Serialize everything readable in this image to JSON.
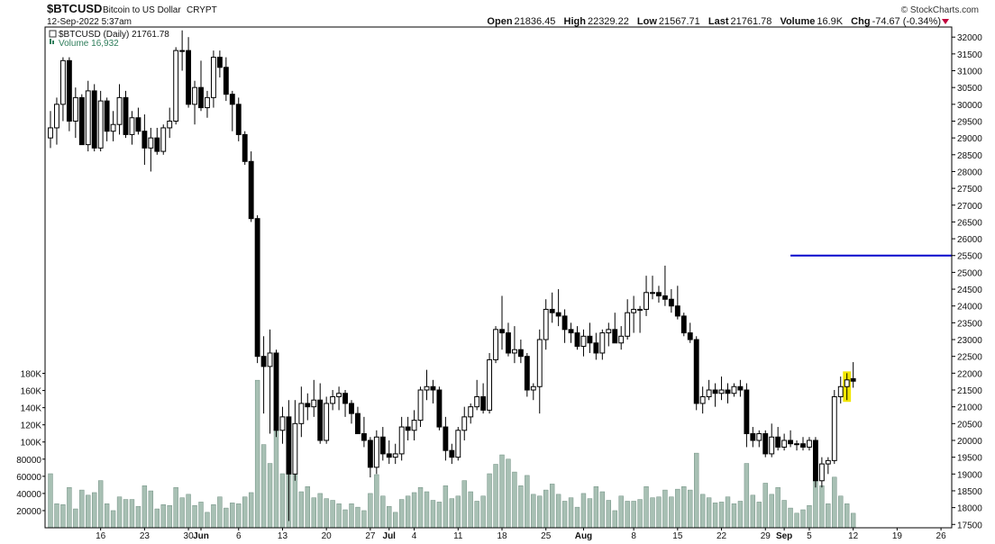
{
  "header": {
    "symbol": "$BTCUSD",
    "description": "Bitcoin to US Dollar",
    "exchange": "CRYPT",
    "datetime": "12-Sep-2022 5:37am",
    "credit": "© StockCharts.com",
    "stats": {
      "open_label": "Open",
      "open": "21836.45",
      "high_label": "High",
      "high": "22329.22",
      "low_label": "Low",
      "low": "21567.71",
      "last_label": "Last",
      "last": "21761.78",
      "volume_label": "Volume",
      "volume": "16.9K",
      "chg_label": "Chg",
      "chg": "-74.67 (-0.34%)"
    }
  },
  "legend": {
    "price": "$BTCUSD (Daily) 21761.78",
    "volume": "Volume 16,932"
  },
  "colors": {
    "up_fill": "#ffffff",
    "down_fill": "#000000",
    "volume_bar": "#a8c0b4",
    "volume_edge": "#6f8f80",
    "level_line": "#0000cc",
    "highlight": "#f2e600",
    "volume_legend": "#2e7d5b",
    "chg_arrow": "#c0003c"
  },
  "chart_data": {
    "type": "candlestick",
    "title": "$BTCUSD (Daily) 21761.78",
    "ylim": [
      17400,
      32300
    ],
    "y_ticks": [
      17500,
      18000,
      18500,
      19000,
      19500,
      20000,
      20500,
      21000,
      21500,
      22000,
      22500,
      23000,
      23500,
      24000,
      24500,
      25000,
      25500,
      26000,
      26500,
      27000,
      27500,
      28000,
      28500,
      29000,
      29500,
      30000,
      30500,
      31000,
      31500,
      32000
    ],
    "volume_ticks": [
      {
        "value": 20000,
        "label": "20000"
      },
      {
        "value": 40000,
        "label": "40000"
      },
      {
        "value": 60000,
        "label": "60000"
      },
      {
        "value": 80000,
        "label": "80000"
      },
      {
        "value": 100000,
        "label": "100K"
      },
      {
        "value": 120000,
        "label": "120K"
      },
      {
        "value": 140000,
        "label": "140K"
      },
      {
        "value": 160000,
        "label": "160K"
      },
      {
        "value": 180000,
        "label": "180K"
      }
    ],
    "volume_ylim": [
      0,
      190000
    ],
    "x_labels": [
      "16",
      "23",
      "30",
      "Jun",
      "6",
      "13",
      "20",
      "27",
      "Jul",
      "4",
      "11",
      "18",
      "25",
      "Aug",
      "8",
      "15",
      "22",
      "29",
      "Sep",
      "5",
      "12",
      "19",
      "26"
    ],
    "x_label_index": [
      8,
      15,
      22,
      24,
      30,
      37,
      44,
      51,
      54,
      58,
      65,
      72,
      79,
      85,
      93,
      100,
      107,
      114,
      117,
      121,
      128,
      135,
      142
    ],
    "bold_labels": [
      "Jun",
      "Jul",
      "Aug",
      "Sep"
    ],
    "horizontal_line": {
      "value": 25500,
      "start_index": 118
    },
    "highlight_index": 127,
    "candles": [
      {
        "o": 29000,
        "h": 29800,
        "l": 28700,
        "c": 29300,
        "v": 63000
      },
      {
        "o": 29300,
        "h": 30200,
        "l": 28800,
        "c": 30000,
        "v": 28000
      },
      {
        "o": 30000,
        "h": 31400,
        "l": 29500,
        "c": 31300,
        "v": 27000
      },
      {
        "o": 31300,
        "h": 31400,
        "l": 29200,
        "c": 29500,
        "v": 47000
      },
      {
        "o": 29500,
        "h": 30500,
        "l": 29000,
        "c": 30200,
        "v": 22000
      },
      {
        "o": 30200,
        "h": 30300,
        "l": 28800,
        "c": 28800,
        "v": 44000
      },
      {
        "o": 28800,
        "h": 30700,
        "l": 28600,
        "c": 30400,
        "v": 38000
      },
      {
        "o": 30400,
        "h": 30600,
        "l": 28600,
        "c": 28700,
        "v": 41000
      },
      {
        "o": 28700,
        "h": 30400,
        "l": 28600,
        "c": 30100,
        "v": 55000
      },
      {
        "o": 30100,
        "h": 30200,
        "l": 28900,
        "c": 29200,
        "v": 28000
      },
      {
        "o": 29200,
        "h": 29800,
        "l": 28900,
        "c": 29400,
        "v": 20000
      },
      {
        "o": 29400,
        "h": 30600,
        "l": 29100,
        "c": 30200,
        "v": 36000
      },
      {
        "o": 30200,
        "h": 30400,
        "l": 29000,
        "c": 29100,
        "v": 33000
      },
      {
        "o": 29100,
        "h": 29800,
        "l": 28800,
        "c": 29600,
        "v": 33000
      },
      {
        "o": 29600,
        "h": 29900,
        "l": 29100,
        "c": 29200,
        "v": 25000
      },
      {
        "o": 29200,
        "h": 29700,
        "l": 28200,
        "c": 28700,
        "v": 49000
      },
      {
        "o": 28700,
        "h": 29300,
        "l": 28000,
        "c": 29000,
        "v": 43000
      },
      {
        "o": 29000,
        "h": 29300,
        "l": 28500,
        "c": 28600,
        "v": 22000
      },
      {
        "o": 28600,
        "h": 29400,
        "l": 28500,
        "c": 29300,
        "v": 27000
      },
      {
        "o": 29300,
        "h": 29900,
        "l": 29000,
        "c": 29500,
        "v": 26000
      },
      {
        "o": 29500,
        "h": 31700,
        "l": 29400,
        "c": 31600,
        "v": 47000
      },
      {
        "o": 31600,
        "h": 32200,
        "l": 31000,
        "c": 31600,
        "v": 35000
      },
      {
        "o": 31600,
        "h": 32000,
        "l": 29900,
        "c": 30000,
        "v": 39000
      },
      {
        "o": 30000,
        "h": 30700,
        "l": 29400,
        "c": 30500,
        "v": 26000
      },
      {
        "o": 30500,
        "h": 31300,
        "l": 29800,
        "c": 29900,
        "v": 30000
      },
      {
        "o": 29900,
        "h": 30400,
        "l": 29600,
        "c": 30200,
        "v": 18000
      },
      {
        "o": 30200,
        "h": 31600,
        "l": 29900,
        "c": 31400,
        "v": 27000
      },
      {
        "o": 31400,
        "h": 31600,
        "l": 30800,
        "c": 31100,
        "v": 36000
      },
      {
        "o": 31100,
        "h": 31400,
        "l": 30100,
        "c": 30300,
        "v": 23000
      },
      {
        "o": 30300,
        "h": 30400,
        "l": 29200,
        "c": 30000,
        "v": 29000
      },
      {
        "o": 30000,
        "h": 30200,
        "l": 28900,
        "c": 29100,
        "v": 28000
      },
      {
        "o": 29100,
        "h": 29200,
        "l": 28200,
        "c": 28300,
        "v": 36000
      },
      {
        "o": 28300,
        "h": 28600,
        "l": 26500,
        "c": 26600,
        "v": 41000
      },
      {
        "o": 26600,
        "h": 26700,
        "l": 22300,
        "c": 22500,
        "v": 172000
      },
      {
        "o": 22500,
        "h": 23100,
        "l": 20800,
        "c": 22200,
        "v": 97000
      },
      {
        "o": 22200,
        "h": 23300,
        "l": 20200,
        "c": 22600,
        "v": 75000
      },
      {
        "o": 22600,
        "h": 22700,
        "l": 20100,
        "c": 20300,
        "v": 115000
      },
      {
        "o": 20300,
        "h": 21000,
        "l": 19900,
        "c": 20700,
        "v": 63000
      },
      {
        "o": 20700,
        "h": 21200,
        "l": 17600,
        "c": 19000,
        "v": 122000
      },
      {
        "o": 19000,
        "h": 21200,
        "l": 18800,
        "c": 20500,
        "v": 72000
      },
      {
        "o": 20500,
        "h": 21600,
        "l": 20100,
        "c": 21100,
        "v": 42000
      },
      {
        "o": 21100,
        "h": 21400,
        "l": 20600,
        "c": 21000,
        "v": 48000
      },
      {
        "o": 21000,
        "h": 21800,
        "l": 20700,
        "c": 21200,
        "v": 35000
      },
      {
        "o": 21200,
        "h": 21700,
        "l": 19900,
        "c": 20000,
        "v": 40000
      },
      {
        "o": 20000,
        "h": 21300,
        "l": 19900,
        "c": 21100,
        "v": 34000
      },
      {
        "o": 21100,
        "h": 21500,
        "l": 20900,
        "c": 21300,
        "v": 32000
      },
      {
        "o": 21300,
        "h": 21600,
        "l": 20900,
        "c": 21400,
        "v": 28000
      },
      {
        "o": 21400,
        "h": 21500,
        "l": 20700,
        "c": 21100,
        "v": 21000
      },
      {
        "o": 21100,
        "h": 21200,
        "l": 20500,
        "c": 20800,
        "v": 28000
      },
      {
        "o": 20800,
        "h": 21000,
        "l": 20200,
        "c": 20200,
        "v": 24000
      },
      {
        "o": 20200,
        "h": 20700,
        "l": 19800,
        "c": 20000,
        "v": 20000
      },
      {
        "o": 20000,
        "h": 20100,
        "l": 18900,
        "c": 19200,
        "v": 40000
      },
      {
        "o": 19200,
        "h": 20300,
        "l": 19000,
        "c": 20100,
        "v": 62000
      },
      {
        "o": 20100,
        "h": 20400,
        "l": 19400,
        "c": 19600,
        "v": 37000
      },
      {
        "o": 19600,
        "h": 20000,
        "l": 19300,
        "c": 19500,
        "v": 25000
      },
      {
        "o": 19500,
        "h": 19900,
        "l": 19300,
        "c": 19600,
        "v": 18000
      },
      {
        "o": 19600,
        "h": 20700,
        "l": 19400,
        "c": 20400,
        "v": 33000
      },
      {
        "o": 20400,
        "h": 20700,
        "l": 20000,
        "c": 20300,
        "v": 37000
      },
      {
        "o": 20300,
        "h": 20900,
        "l": 20000,
        "c": 20600,
        "v": 41000
      },
      {
        "o": 20600,
        "h": 21600,
        "l": 20400,
        "c": 21500,
        "v": 47000
      },
      {
        "o": 21500,
        "h": 22100,
        "l": 21200,
        "c": 21600,
        "v": 42000
      },
      {
        "o": 21600,
        "h": 21800,
        "l": 21100,
        "c": 21500,
        "v": 32000
      },
      {
        "o": 21500,
        "h": 21600,
        "l": 20300,
        "c": 20400,
        "v": 30000
      },
      {
        "o": 20400,
        "h": 20700,
        "l": 19400,
        "c": 19700,
        "v": 49000
      },
      {
        "o": 19700,
        "h": 19900,
        "l": 19300,
        "c": 19500,
        "v": 34000
      },
      {
        "o": 19500,
        "h": 20400,
        "l": 19400,
        "c": 20300,
        "v": 37000
      },
      {
        "o": 20300,
        "h": 21000,
        "l": 20000,
        "c": 20700,
        "v": 55000
      },
      {
        "o": 20700,
        "h": 21100,
        "l": 20500,
        "c": 21000,
        "v": 42000
      },
      {
        "o": 21000,
        "h": 21800,
        "l": 20900,
        "c": 21300,
        "v": 31000
      },
      {
        "o": 21300,
        "h": 21700,
        "l": 20800,
        "c": 20900,
        "v": 37000
      },
      {
        "o": 20900,
        "h": 22600,
        "l": 20800,
        "c": 22400,
        "v": 63000
      },
      {
        "o": 22400,
        "h": 23400,
        "l": 22300,
        "c": 23300,
        "v": 74000
      },
      {
        "o": 23300,
        "h": 24300,
        "l": 22700,
        "c": 23200,
        "v": 85000
      },
      {
        "o": 23200,
        "h": 23500,
        "l": 22500,
        "c": 22600,
        "v": 80000
      },
      {
        "o": 22600,
        "h": 23400,
        "l": 22300,
        "c": 22700,
        "v": 65000
      },
      {
        "o": 22700,
        "h": 23000,
        "l": 22300,
        "c": 22500,
        "v": 49000
      },
      {
        "o": 22500,
        "h": 22600,
        "l": 21300,
        "c": 21500,
        "v": 61000
      },
      {
        "o": 21500,
        "h": 21700,
        "l": 21200,
        "c": 21600,
        "v": 39000
      },
      {
        "o": 21600,
        "h": 23300,
        "l": 20800,
        "c": 23000,
        "v": 37000
      },
      {
        "o": 23000,
        "h": 24200,
        "l": 22700,
        "c": 23900,
        "v": 44000
      },
      {
        "o": 23900,
        "h": 24400,
        "l": 23500,
        "c": 23800,
        "v": 51000
      },
      {
        "o": 23800,
        "h": 24500,
        "l": 23400,
        "c": 23700,
        "v": 39000
      },
      {
        "o": 23700,
        "h": 23900,
        "l": 22900,
        "c": 23300,
        "v": 31000
      },
      {
        "o": 23300,
        "h": 23500,
        "l": 22900,
        "c": 23200,
        "v": 35000
      },
      {
        "o": 23200,
        "h": 23400,
        "l": 22700,
        "c": 22800,
        "v": 24000
      },
      {
        "o": 22800,
        "h": 23300,
        "l": 22500,
        "c": 23100,
        "v": 40000
      },
      {
        "o": 23100,
        "h": 23500,
        "l": 22600,
        "c": 22900,
        "v": 34000
      },
      {
        "o": 22900,
        "h": 23200,
        "l": 22400,
        "c": 22600,
        "v": 48000
      },
      {
        "o": 22600,
        "h": 23300,
        "l": 22400,
        "c": 23200,
        "v": 42000
      },
      {
        "o": 23200,
        "h": 23500,
        "l": 22800,
        "c": 23300,
        "v": 32000
      },
      {
        "o": 23300,
        "h": 23800,
        "l": 22900,
        "c": 22900,
        "v": 20000
      },
      {
        "o": 22900,
        "h": 23400,
        "l": 22700,
        "c": 23100,
        "v": 37000
      },
      {
        "o": 23100,
        "h": 24200,
        "l": 23000,
        "c": 23800,
        "v": 31000
      },
      {
        "o": 23800,
        "h": 24300,
        "l": 23200,
        "c": 23900,
        "v": 31000
      },
      {
        "o": 23900,
        "h": 24000,
        "l": 23200,
        "c": 23900,
        "v": 33000
      },
      {
        "o": 23900,
        "h": 24900,
        "l": 23700,
        "c": 24400,
        "v": 48000
      },
      {
        "o": 24400,
        "h": 24900,
        "l": 24200,
        "c": 24400,
        "v": 35000
      },
      {
        "o": 24400,
        "h": 24600,
        "l": 24100,
        "c": 24300,
        "v": 36000
      },
      {
        "o": 24300,
        "h": 25200,
        "l": 24000,
        "c": 24200,
        "v": 44000
      },
      {
        "o": 24200,
        "h": 24500,
        "l": 23800,
        "c": 24000,
        "v": 36000
      },
      {
        "o": 24000,
        "h": 24600,
        "l": 23600,
        "c": 23700,
        "v": 45000
      },
      {
        "o": 23700,
        "h": 23800,
        "l": 23100,
        "c": 23200,
        "v": 48000
      },
      {
        "o": 23200,
        "h": 23500,
        "l": 22900,
        "c": 23000,
        "v": 44000
      },
      {
        "o": 23000,
        "h": 23100,
        "l": 20900,
        "c": 21100,
        "v": 87000
      },
      {
        "o": 21100,
        "h": 21600,
        "l": 20800,
        "c": 21300,
        "v": 39000
      },
      {
        "o": 21300,
        "h": 21800,
        "l": 21200,
        "c": 21500,
        "v": 35000
      },
      {
        "o": 21500,
        "h": 21700,
        "l": 21000,
        "c": 21400,
        "v": 29000
      },
      {
        "o": 21400,
        "h": 21900,
        "l": 21200,
        "c": 21500,
        "v": 30000
      },
      {
        "o": 21500,
        "h": 21700,
        "l": 21100,
        "c": 21400,
        "v": 36000
      },
      {
        "o": 21400,
        "h": 21700,
        "l": 21300,
        "c": 21600,
        "v": 28000
      },
      {
        "o": 21600,
        "h": 21800,
        "l": 21300,
        "c": 21500,
        "v": 31000
      },
      {
        "o": 21500,
        "h": 21700,
        "l": 19800,
        "c": 20200,
        "v": 75000
      },
      {
        "o": 20200,
        "h": 20400,
        "l": 19800,
        "c": 20000,
        "v": 38000
      },
      {
        "o": 20000,
        "h": 20300,
        "l": 19800,
        "c": 20200,
        "v": 30000
      },
      {
        "o": 20200,
        "h": 20300,
        "l": 19500,
        "c": 19600,
        "v": 52000
      },
      {
        "o": 19600,
        "h": 20500,
        "l": 19500,
        "c": 20100,
        "v": 39000
      },
      {
        "o": 20100,
        "h": 20400,
        "l": 19700,
        "c": 19800,
        "v": 47000
      },
      {
        "o": 19800,
        "h": 20200,
        "l": 19700,
        "c": 20000,
        "v": 32000
      },
      {
        "o": 20000,
        "h": 20300,
        "l": 19800,
        "c": 19900,
        "v": 23000
      },
      {
        "o": 19900,
        "h": 20000,
        "l": 19700,
        "c": 19900,
        "v": 17000
      },
      {
        "o": 19900,
        "h": 20100,
        "l": 19700,
        "c": 19800,
        "v": 21000
      },
      {
        "o": 19800,
        "h": 20100,
        "l": 19700,
        "c": 20000,
        "v": 26000
      },
      {
        "o": 20000,
        "h": 20100,
        "l": 18600,
        "c": 18800,
        "v": 57000
      },
      {
        "o": 18800,
        "h": 19500,
        "l": 18600,
        "c": 19300,
        "v": 49000
      },
      {
        "o": 19300,
        "h": 19500,
        "l": 19000,
        "c": 19400,
        "v": 28000
      },
      {
        "o": 19400,
        "h": 21500,
        "l": 19300,
        "c": 21300,
        "v": 59000
      },
      {
        "o": 21300,
        "h": 21900,
        "l": 21100,
        "c": 21600,
        "v": 37000
      },
      {
        "o": 21600,
        "h": 22000,
        "l": 21200,
        "c": 21800,
        "v": 28000
      },
      {
        "o": 21836.45,
        "h": 22329.22,
        "l": 21567.71,
        "c": 21761.78,
        "v": 16932
      }
    ]
  }
}
